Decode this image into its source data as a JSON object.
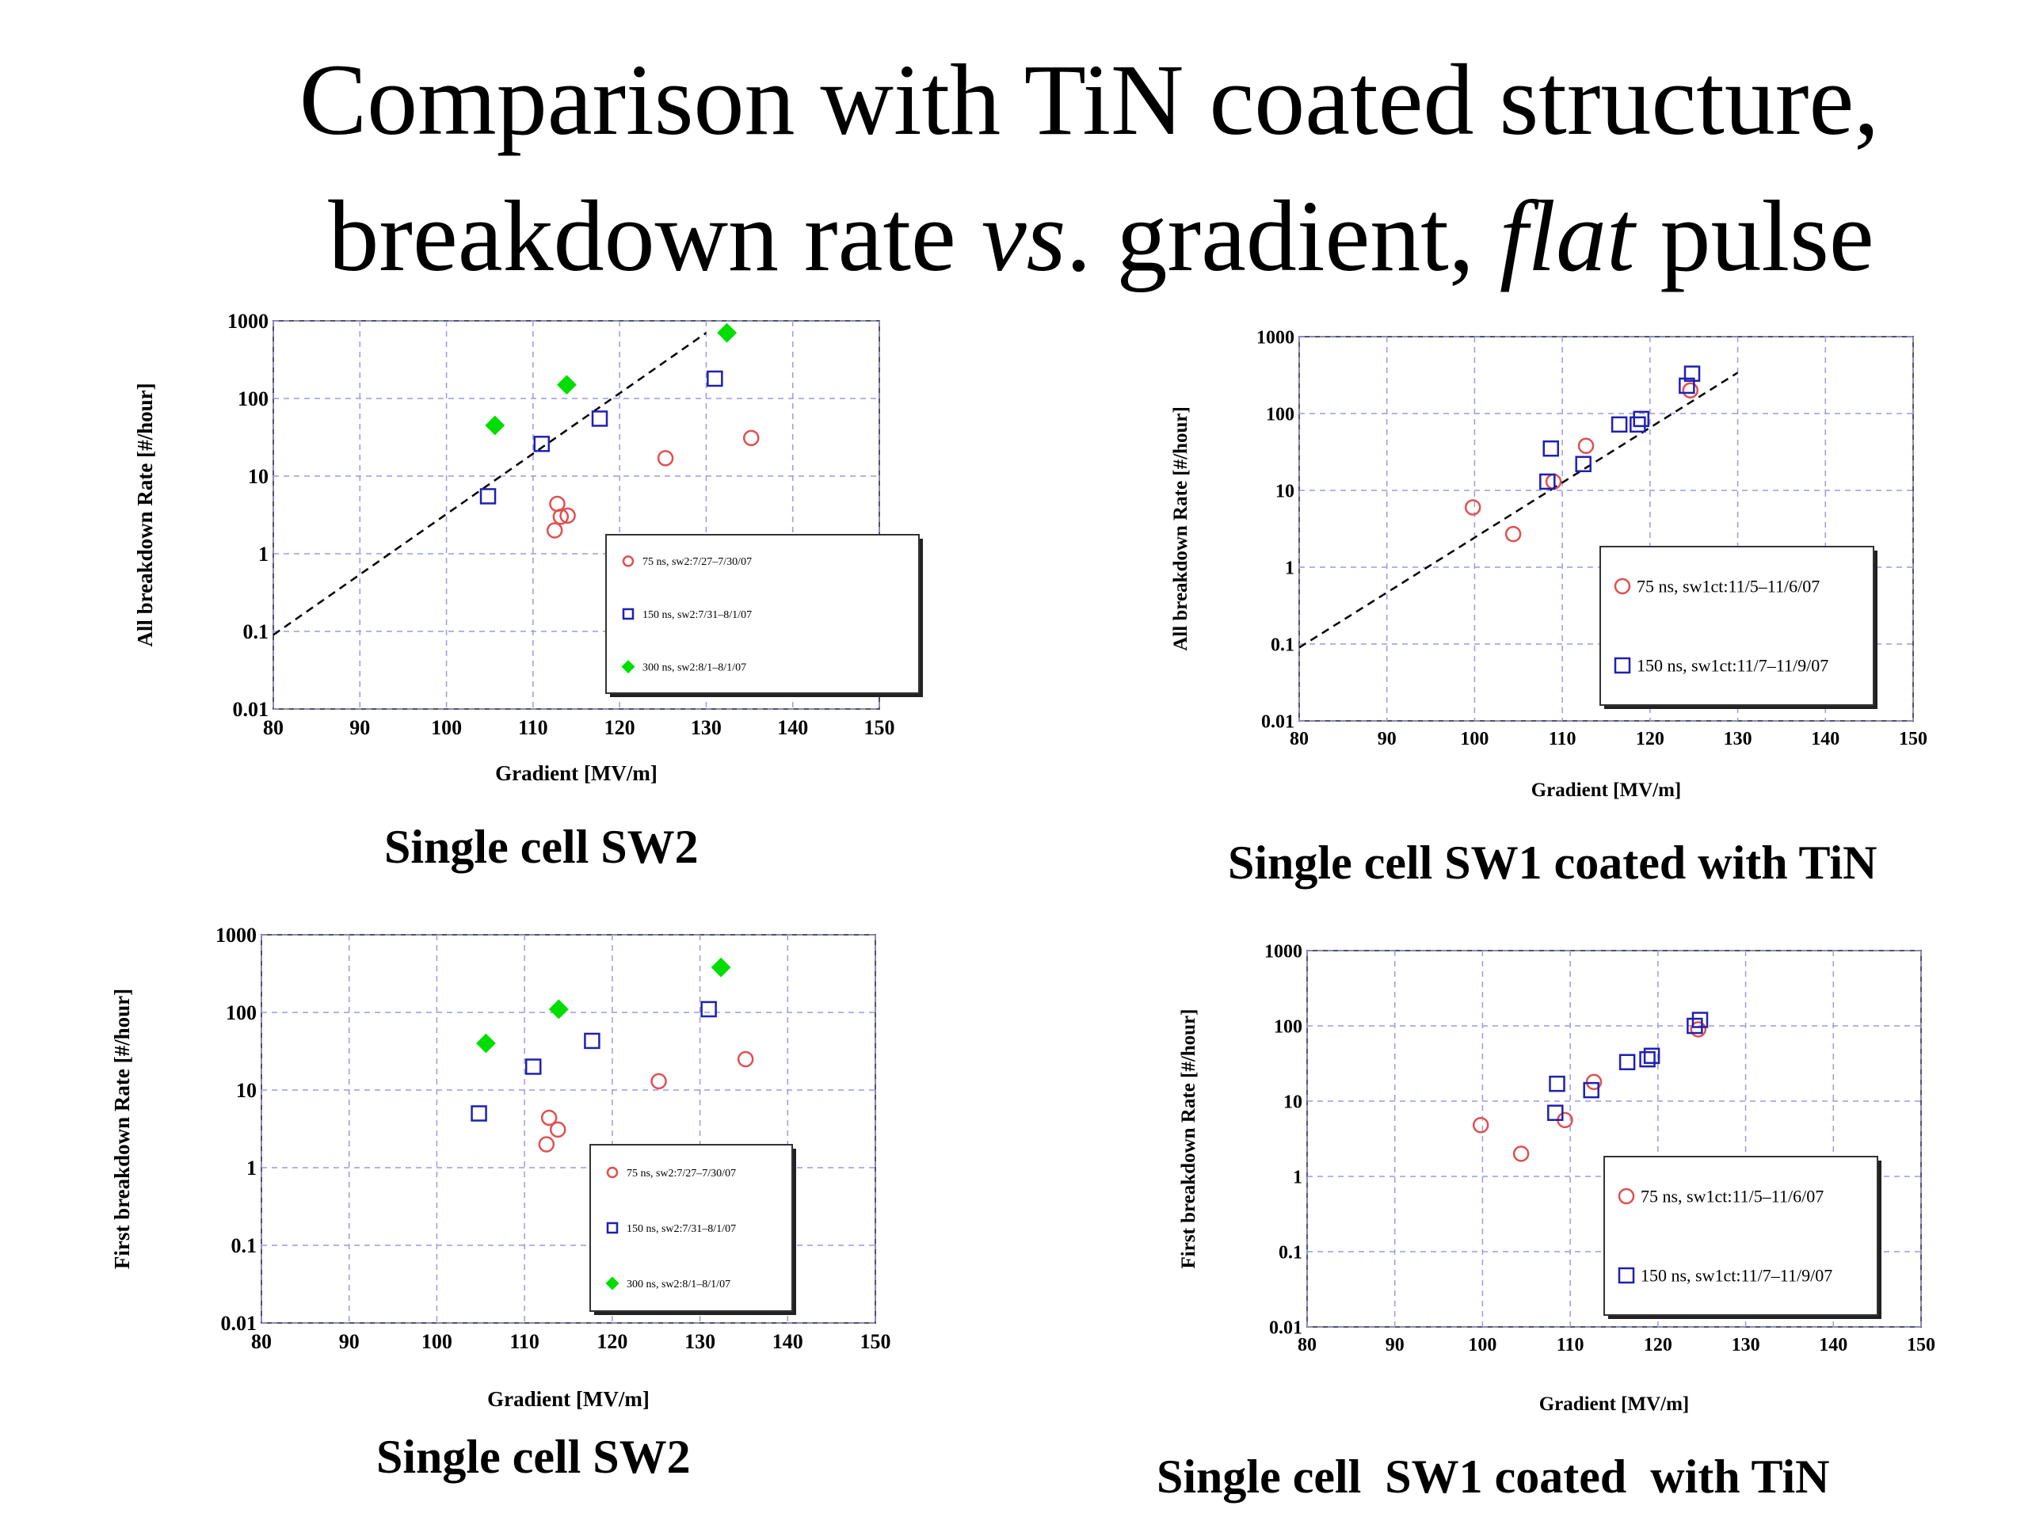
{
  "title": {
    "line1": "Comparison with TiN coated structure,",
    "line2_a": "breakdown rate ",
    "line2_vs": "vs",
    "line2_b": ". gradient, ",
    "line2_flat": "flat",
    "line2_c": " pulse"
  },
  "colors": {
    "red": "#e05050",
    "blue": "#2020b0",
    "green": "#00dd00",
    "grid": "#9a9ae6"
  },
  "chart_data": [
    {
      "type": "scatter",
      "xlabel": "Gradient [MV/m]",
      "ylabel": "All breakdown Rate [#/hour]",
      "caption": "Single cell SW2",
      "xlim": [
        80,
        150
      ],
      "ylim": [
        0.01,
        1000
      ],
      "yscale": "log",
      "xticks": [
        "80",
        "90",
        "100",
        "110",
        "120",
        "130",
        "140",
        "150"
      ],
      "yticks": [
        "0.01",
        "0.1",
        "1",
        "10",
        "100",
        "1000"
      ],
      "grid": true,
      "legend_position": "lower-right",
      "fit_line": {
        "x": [
          80,
          130
        ],
        "y": [
          0.09,
          700
        ]
      },
      "series": [
        {
          "name": "75 ns, sw2:7/27–7/30/07",
          "marker": "circle",
          "color": "red",
          "x": [
            112.8,
            113.2,
            114.0,
            112.5,
            125.3,
            135.2
          ],
          "y": [
            4.4,
            3.0,
            3.1,
            2.0,
            17,
            31
          ]
        },
        {
          "name": "150 ns, sw2:7/31–8/1/07",
          "marker": "square",
          "color": "blue",
          "x": [
            104.8,
            111.0,
            117.7,
            131.0
          ],
          "y": [
            5.5,
            26,
            55,
            180
          ]
        },
        {
          "name": "300 ns, sw2:8/1–8/1/07",
          "marker": "diamond",
          "color": "green",
          "x": [
            105.6,
            113.9,
            132.4
          ],
          "y": [
            45,
            150,
            700
          ]
        }
      ]
    },
    {
      "type": "scatter",
      "xlabel": "Gradient [MV/m]",
      "ylabel": "All breakdown Rate [#/hour]",
      "caption": "Single cell SW1 coated with TiN",
      "xlim": [
        80,
        150
      ],
      "ylim": [
        0.01,
        1000
      ],
      "yscale": "log",
      "xticks": [
        "80",
        "90",
        "100",
        "110",
        "120",
        "130",
        "140",
        "150"
      ],
      "yticks": [
        "0.01",
        "0.1",
        "1",
        "10",
        "100",
        "1000"
      ],
      "grid": true,
      "legend_position": "lower-right",
      "fit_line": {
        "x": [
          80,
          130
        ],
        "y": [
          0.09,
          340
        ]
      },
      "series": [
        {
          "name": "75 ns, sw1ct:11/5–11/6/07",
          "marker": "circle",
          "color": "red",
          "x": [
            99.8,
            104.4,
            109.0,
            112.7,
            124.6
          ],
          "y": [
            6,
            2.7,
            13,
            38,
            200
          ]
        },
        {
          "name": "150 ns, sw1ct:11/7–11/9/07",
          "marker": "square",
          "color": "blue",
          "x": [
            108.3,
            108.7,
            112.4,
            116.5,
            118.6,
            119.0,
            124.2,
            124.8
          ],
          "y": [
            13,
            35,
            22,
            72,
            72,
            85,
            230,
            330
          ]
        }
      ]
    },
    {
      "type": "scatter",
      "xlabel": "Gradient [MV/m]",
      "ylabel": "First breakdown Rate [#/hour]",
      "caption": "Single cell SW2",
      "xlim": [
        80,
        150
      ],
      "ylim": [
        0.01,
        1000
      ],
      "yscale": "log",
      "xticks": [
        "80",
        "90",
        "100",
        "110",
        "120",
        "130",
        "140",
        "150"
      ],
      "yticks": [
        "0.01",
        "0.1",
        "1",
        "10",
        "100",
        "1000"
      ],
      "grid": true,
      "legend_position": "lower-right",
      "series": [
        {
          "name": "75 ns, sw2:7/27–7/30/07",
          "marker": "circle",
          "color": "red",
          "x": [
            112.8,
            113.8,
            112.5,
            125.3,
            135.2
          ],
          "y": [
            4.4,
            3.1,
            2.0,
            13,
            25
          ]
        },
        {
          "name": "150 ns, sw2:7/31–8/1/07",
          "marker": "square",
          "color": "blue",
          "x": [
            104.8,
            111.0,
            117.7,
            131.0
          ],
          "y": [
            5,
            20,
            43,
            110
          ]
        },
        {
          "name": "300 ns, sw2:8/1–8/1/07",
          "marker": "diamond",
          "color": "green",
          "x": [
            105.6,
            113.9,
            132.4
          ],
          "y": [
            40,
            110,
            380
          ]
        }
      ]
    },
    {
      "type": "scatter",
      "xlabel": "Gradient [MV/m]",
      "ylabel": "First breakdown Rate [#/hour]",
      "caption": "Single cell  SW1 coated  with TiN",
      "xlim": [
        80,
        150
      ],
      "ylim": [
        0.01,
        1000
      ],
      "yscale": "log",
      "xticks": [
        "80",
        "90",
        "100",
        "110",
        "120",
        "130",
        "140",
        "150"
      ],
      "yticks": [
        "0.01",
        "0.1",
        "1",
        "10",
        "100",
        "1000"
      ],
      "grid": true,
      "legend_position": "lower-right",
      "series": [
        {
          "name": "75 ns, sw1ct:11/5–11/6/07",
          "marker": "circle",
          "color": "red",
          "x": [
            99.8,
            104.4,
            109.4,
            112.7,
            124.6
          ],
          "y": [
            4.8,
            2.0,
            5.6,
            18,
            90
          ]
        },
        {
          "name": "150 ns, sw1ct:11/7–11/9/07",
          "marker": "square",
          "color": "blue",
          "x": [
            108.3,
            108.5,
            112.4,
            116.5,
            118.8,
            119.3,
            124.2,
            124.8
          ],
          "y": [
            7,
            17,
            14,
            33,
            36,
            40,
            100,
            120
          ]
        }
      ]
    }
  ]
}
